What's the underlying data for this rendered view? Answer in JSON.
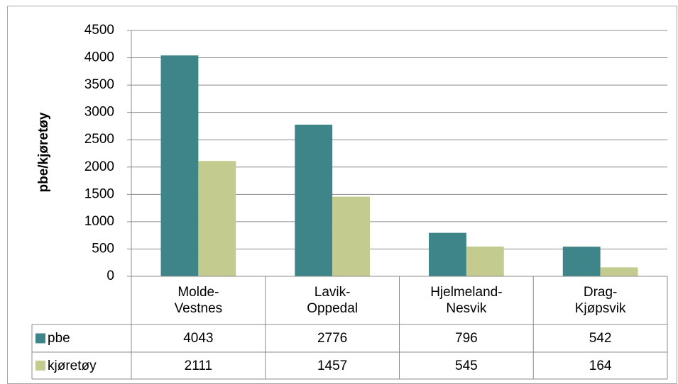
{
  "chart_data": {
    "type": "bar",
    "y_label": "pbe/kjøretøy",
    "categories": [
      "Molde-\nVestnes",
      "Lavik-\nOppedal",
      "Hjelmeland-\nNesvik",
      "Drag-\nKjøpsvik"
    ],
    "series": [
      {
        "name": "pbe",
        "color": "#3d8588",
        "values": [
          4043,
          2776,
          796,
          542
        ]
      },
      {
        "name": "kjøretøy",
        "color": "#c4cb8e",
        "values": [
          2111,
          1457,
          545,
          164
        ]
      }
    ],
    "ylim": [
      0,
      4500
    ],
    "yticks": [
      0,
      500,
      1000,
      1500,
      2000,
      2500,
      3000,
      3500,
      4000,
      4500
    ],
    "grid": true,
    "legend": "data-table"
  }
}
